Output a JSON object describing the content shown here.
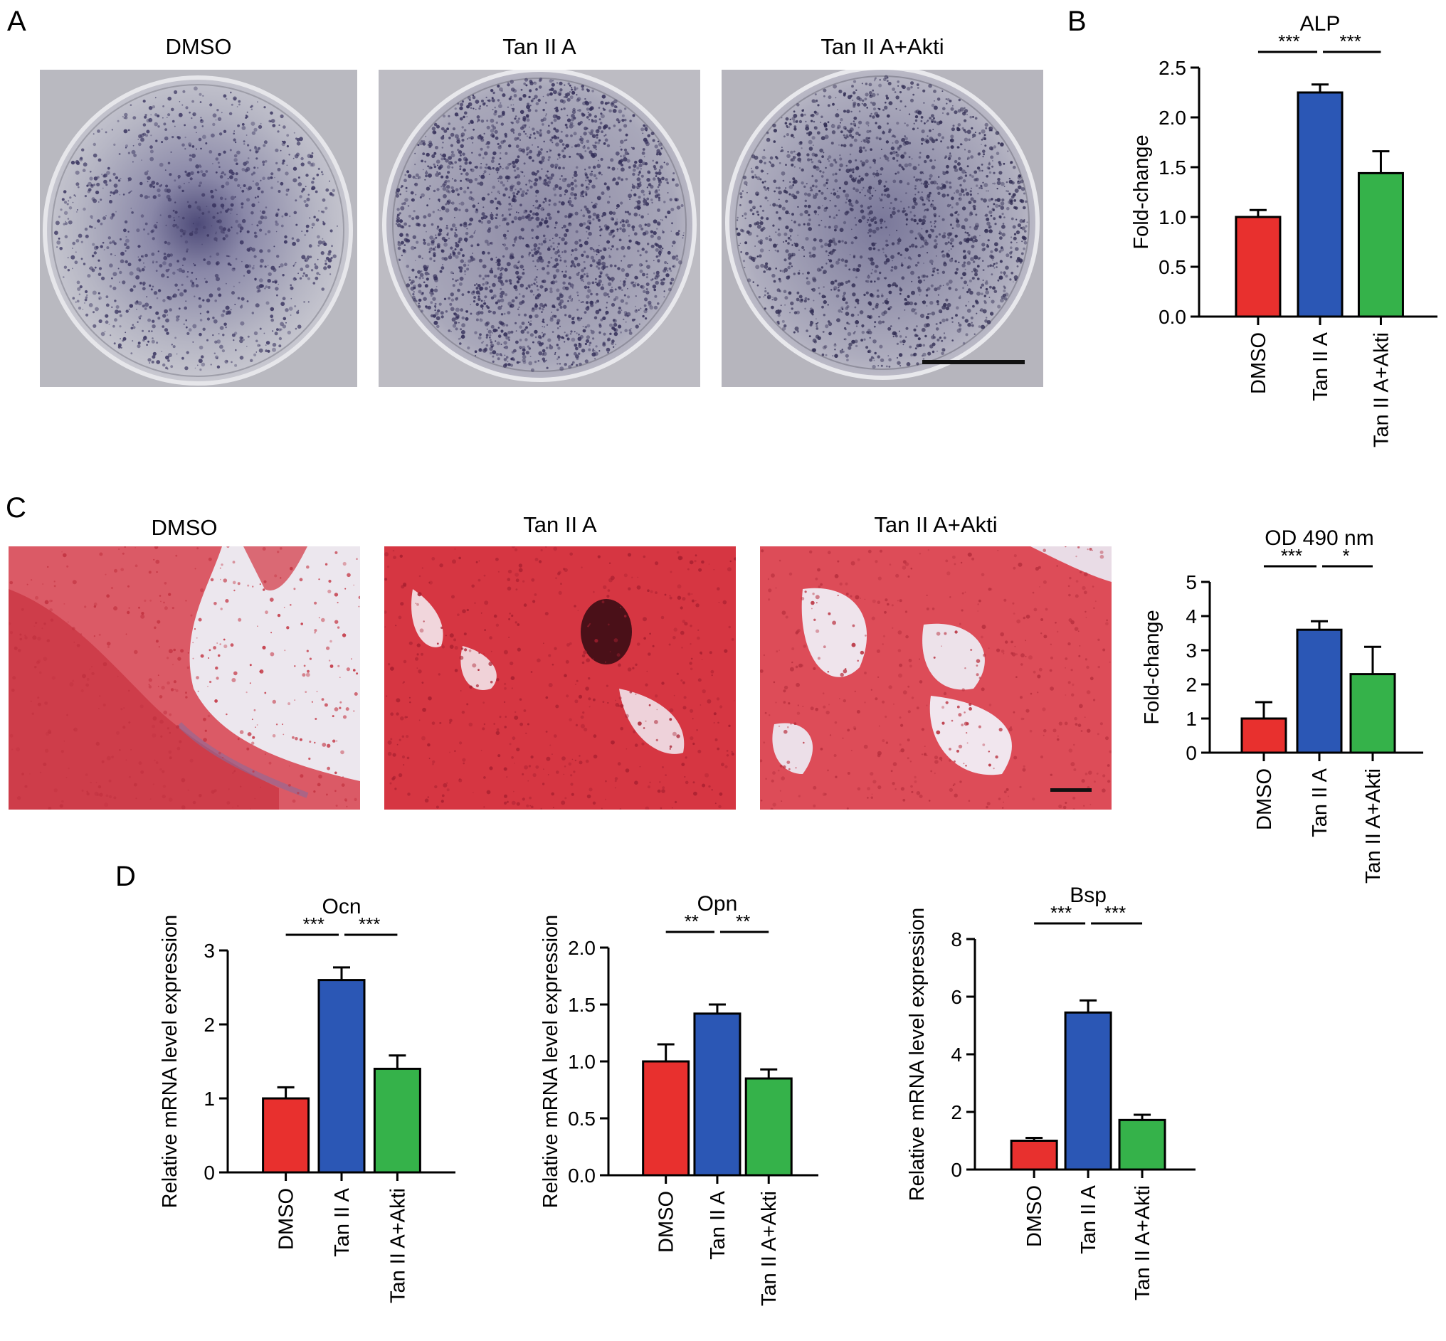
{
  "panels": {
    "a": {
      "letter": "A",
      "images": [
        {
          "label": "DMSO"
        },
        {
          "label": "Tan  II A"
        },
        {
          "label": "Tan  II A+Akti"
        }
      ]
    },
    "c": {
      "letter": "C",
      "images": [
        {
          "label": "DMSO"
        },
        {
          "label": "Tan  II A"
        },
        {
          "label": "Tan  II A+Akti"
        }
      ]
    },
    "b": {
      "letter": "B"
    },
    "d": {
      "letter": "D"
    }
  },
  "colors": {
    "dmso": "#e8302e",
    "tan": "#2b57b5",
    "akti": "#35b24a",
    "alp_stain": "#3a3560",
    "alizarin": "#dc3844"
  },
  "chart_data": [
    {
      "id": "alp",
      "type": "bar",
      "title": "ALP",
      "ylabel": "Fold-change",
      "categories": [
        "DMSO",
        "Tan  II A",
        "Tan  II A+Akti"
      ],
      "values": [
        1.0,
        2.25,
        1.44
      ],
      "errors": [
        0.07,
        0.08,
        0.22
      ],
      "ylim": [
        0,
        2.5
      ],
      "yticks": [
        "0.0",
        "0.5",
        "1.0",
        "1.5",
        "2.0",
        "2.5"
      ],
      "significance": [
        {
          "from": 0,
          "to": 1,
          "label": "***"
        },
        {
          "from": 1,
          "to": 2,
          "label": "***"
        }
      ]
    },
    {
      "id": "od490",
      "type": "bar",
      "title": "OD 490 nm",
      "ylabel": "Fold-change",
      "categories": [
        "DMSO",
        "Tan  II A",
        "Tan  II A+Akti"
      ],
      "values": [
        1.0,
        3.6,
        2.3
      ],
      "errors": [
        0.48,
        0.25,
        0.8
      ],
      "ylim": [
        0,
        5
      ],
      "yticks": [
        "0",
        "1",
        "2",
        "3",
        "4",
        "5"
      ],
      "significance": [
        {
          "from": 0,
          "to": 1,
          "label": "***"
        },
        {
          "from": 1,
          "to": 2,
          "label": "*"
        }
      ]
    },
    {
      "id": "ocn",
      "type": "bar",
      "title": "Ocn",
      "ylabel": "Relative mRNA level expression",
      "categories": [
        "DMSO",
        "Tan  II A",
        "Tan  II A+Akti"
      ],
      "values": [
        1.0,
        2.6,
        1.4
      ],
      "errors": [
        0.15,
        0.17,
        0.18
      ],
      "ylim": [
        0,
        3
      ],
      "yticks": [
        "0",
        "1",
        "2",
        "3"
      ],
      "significance": [
        {
          "from": 0,
          "to": 1,
          "label": "***"
        },
        {
          "from": 1,
          "to": 2,
          "label": "***"
        }
      ]
    },
    {
      "id": "opn",
      "type": "bar",
      "title": "Opn",
      "ylabel": "Relative mRNA level expression",
      "categories": [
        "DMSO",
        "Tan  II A",
        "Tan  II A+Akti"
      ],
      "values": [
        1.0,
        1.42,
        0.85
      ],
      "errors": [
        0.15,
        0.08,
        0.08
      ],
      "ylim": [
        0,
        2.0
      ],
      "yticks": [
        "0.0",
        "0.5",
        "1.0",
        "1.5",
        "2.0"
      ],
      "significance": [
        {
          "from": 0,
          "to": 1,
          "label": "**"
        },
        {
          "from": 1,
          "to": 2,
          "label": "**"
        }
      ]
    },
    {
      "id": "bsp",
      "type": "bar",
      "title": "Bsp",
      "ylabel": "Relative mRNA level expression",
      "categories": [
        "DMSO",
        "Tan  II A",
        "Tan  II A+Akti"
      ],
      "values": [
        1.0,
        5.45,
        1.72
      ],
      "errors": [
        0.1,
        0.42,
        0.18
      ],
      "ylim": [
        0,
        8
      ],
      "yticks": [
        "0",
        "2",
        "4",
        "6",
        "8"
      ],
      "significance": [
        {
          "from": 0,
          "to": 1,
          "label": "***"
        },
        {
          "from": 1,
          "to": 2,
          "label": "***"
        }
      ]
    }
  ]
}
